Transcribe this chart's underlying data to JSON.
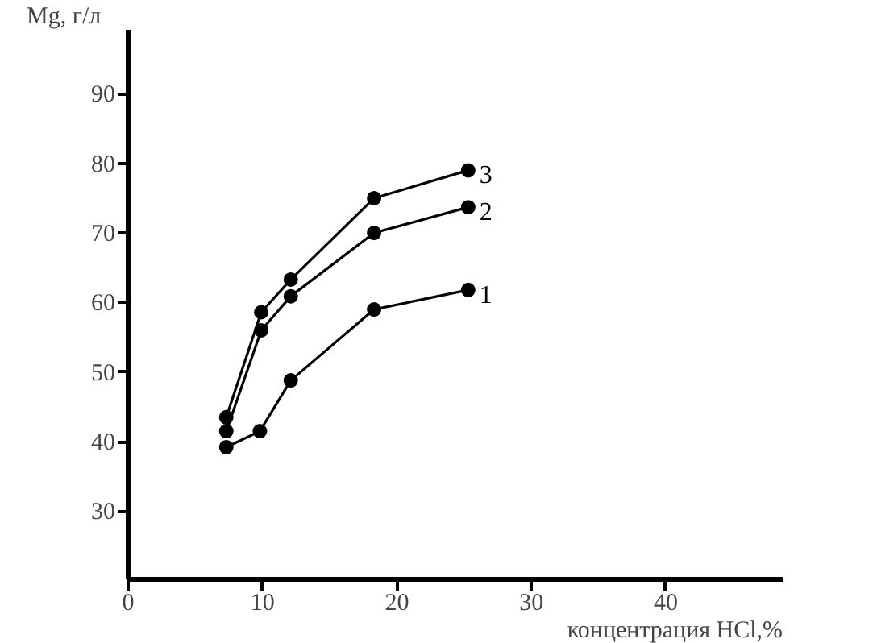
{
  "chart_data": {
    "type": "line",
    "xlabel": "концентрация HCl,%",
    "ylabel": "Mg, г/л",
    "xlim": [
      0,
      48.7
    ],
    "ylim": [
      20.2,
      99.2
    ],
    "xticks": [
      0,
      10,
      20,
      30,
      40
    ],
    "yticks": [
      30,
      40,
      50,
      60,
      70,
      80,
      90
    ],
    "grid": false,
    "marker": "circle",
    "line_style": "solid",
    "series": [
      {
        "name": "1",
        "color": "#000000",
        "x": [
          7.3,
          9.8,
          12.1,
          18.3,
          25.3
        ],
        "values": [
          39.2,
          41.5,
          48.8,
          59.0,
          61.8
        ]
      },
      {
        "name": "2",
        "color": "#000000",
        "x": [
          7.3,
          9.9,
          12.1,
          18.3,
          25.3
        ],
        "values": [
          41.5,
          56.0,
          60.9,
          70.0,
          73.7
        ]
      },
      {
        "name": "3",
        "color": "#000000",
        "x": [
          7.3,
          9.9,
          12.1,
          18.3,
          25.3
        ],
        "values": [
          43.5,
          58.6,
          63.3,
          75.0,
          79.0
        ]
      }
    ]
  }
}
